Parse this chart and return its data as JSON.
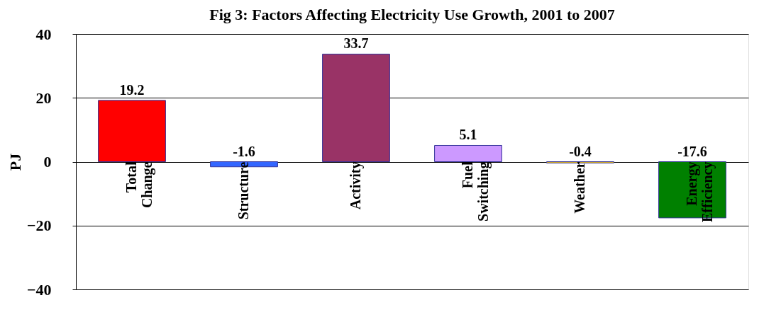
{
  "chart_data": {
    "type": "bar",
    "title": "Fig 3: Factors Affecting Electricity Use Growth, 2001 to 2007",
    "ylabel": "PJ",
    "categories": [
      "Total Change",
      "Structure",
      "Activity",
      "Fuel Switching",
      "Weather",
      "Energy Efficiency"
    ],
    "values": [
      19.2,
      -1.6,
      33.7,
      5.1,
      -0.4,
      -17.6
    ],
    "colors": [
      "#ff0000",
      "#3366ff",
      "#993366",
      "#cc99ff",
      "#ffcc00",
      "#008000"
    ],
    "ylim": [
      -40,
      40
    ],
    "yticks": [
      -40,
      -20,
      0,
      20,
      40
    ],
    "grid": "y",
    "data_labels": true
  }
}
